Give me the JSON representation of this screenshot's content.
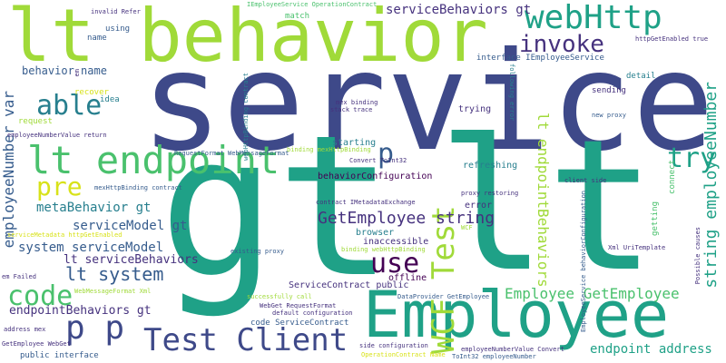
{
  "colors": {
    "background": "#ffffff",
    "lime": "#a0da39",
    "green": "#4ac16d",
    "teal": "#1fa187",
    "cyan": "#277f8e",
    "blue": "#365c8d",
    "indigo": "#46327e",
    "purple": "#440154",
    "yellow": "#d8e219",
    "slate": "#3e4989"
  },
  "words": [
    {
      "text": "service",
      "color": "slate"
    },
    {
      "text": "gt",
      "color": "teal"
    },
    {
      "text": "lt",
      "color": "teal"
    },
    {
      "text": "lt behavior",
      "color": "lime"
    },
    {
      "text": "Employee",
      "color": "teal"
    },
    {
      "text": "lt endpoint",
      "color": "green"
    },
    {
      "text": "webHttp",
      "color": "teal"
    },
    {
      "text": "invoke",
      "color": "indigo"
    },
    {
      "text": "able",
      "color": "cyan"
    },
    {
      "text": "Test Client",
      "color": "slate"
    },
    {
      "text": "WCF Test",
      "color": "lime"
    },
    {
      "text": "try",
      "color": "teal"
    },
    {
      "text": "p p",
      "color": "slate"
    },
    {
      "text": "code",
      "color": "green"
    },
    {
      "text": "use",
      "color": "purple"
    },
    {
      "text": "pre",
      "color": "yellow"
    },
    {
      "text": "p",
      "color": "blue"
    },
    {
      "text": "GetEmployee string",
      "color": "indigo"
    },
    {
      "text": "lt system",
      "color": "blue"
    },
    {
      "text": "Employee GetEmployee",
      "color": "green"
    },
    {
      "text": "string employeeNumber",
      "color": "teal"
    },
    {
      "text": "employeeNumber var",
      "color": "blue"
    },
    {
      "text": "lt endpointBehaviors",
      "color": "lime"
    },
    {
      "text": "serviceBehaviors gt",
      "color": "indigo"
    },
    {
      "text": "endpoint address",
      "color": "teal"
    },
    {
      "text": "metaBehavior gt",
      "color": "cyan"
    },
    {
      "text": "serviceModel gt",
      "color": "blue"
    },
    {
      "text": "system serviceModel",
      "color": "blue"
    },
    {
      "text": "lt serviceBehaviors",
      "color": "indigo"
    },
    {
      "text": "endpointBehaviors gt",
      "color": "indigo"
    },
    {
      "text": "behavior name",
      "color": "blue"
    },
    {
      "text": "behaviorConfiguration",
      "color": "purple"
    },
    {
      "text": "ServiceContract public",
      "color": "indigo"
    },
    {
      "text": "trying",
      "color": "indigo"
    },
    {
      "text": "starting",
      "color": "cyan"
    },
    {
      "text": "refreshing",
      "color": "cyan"
    },
    {
      "text": "error",
      "color": "indigo"
    },
    {
      "text": "browser",
      "color": "cyan"
    },
    {
      "text": "inaccessible",
      "color": "indigo"
    },
    {
      "text": "offline",
      "color": "purple"
    },
    {
      "text": "sending",
      "color": "indigo"
    },
    {
      "text": "detail",
      "color": "cyan"
    },
    {
      "text": "match",
      "color": "green"
    },
    {
      "text": "using",
      "color": "blue"
    },
    {
      "text": "name",
      "color": "blue"
    },
    {
      "text": "idea",
      "color": "cyan"
    },
    {
      "text": "recover",
      "color": "yellow"
    },
    {
      "text": "request",
      "color": "lime"
    },
    {
      "text": "invalid Refer",
      "color": "indigo"
    },
    {
      "text": "IEmployeeService OperationContract",
      "color": "green"
    },
    {
      "text": "interface IEmployeeService",
      "color": "blue"
    },
    {
      "text": "httpGetEnabled true",
      "color": "indigo"
    },
    {
      "text": "new proxy",
      "color": "blue"
    },
    {
      "text": "following error",
      "color": "cyan"
    },
    {
      "text": "mex binding",
      "color": "indigo"
    },
    {
      "text": "stack trace",
      "color": "indigo"
    },
    {
      "text": "binding mexHttpBinding",
      "color": "lime"
    },
    {
      "text": "webHttpBinding contract",
      "color": "cyan"
    },
    {
      "text": "employeeNumberValue return",
      "color": "indigo"
    },
    {
      "text": "RequestFormat WebMessageFormat",
      "color": "blue"
    },
    {
      "text": "Convert ToInt32",
      "color": "indigo"
    },
    {
      "text": "mexHttpBinding contract",
      "color": "blue"
    },
    {
      "text": "serviceMetadata httpGetEnabled",
      "color": "yellow"
    },
    {
      "text": "contract IMetadataExchange",
      "color": "indigo"
    },
    {
      "text": "proxy restoring",
      "color": "indigo"
    },
    {
      "text": "WCF",
      "color": "lime"
    },
    {
      "text": "client side",
      "color": "indigo"
    },
    {
      "text": "connect",
      "color": "green"
    },
    {
      "text": "getting",
      "color": "green"
    },
    {
      "text": "existing proxy",
      "color": "blue"
    },
    {
      "text": "binding webHttpBinding",
      "color": "lime"
    },
    {
      "text": "Xml UriTemplate",
      "color": "indigo"
    },
    {
      "text": "Possible causes",
      "color": "indigo"
    },
    {
      "text": "EmployeeService behaviorConfiguration",
      "color": "blue"
    },
    {
      "text": "em Failed",
      "color": "indigo"
    },
    {
      "text": "WebMessageFormat Xml",
      "color": "lime"
    },
    {
      "text": "successfully call",
      "color": "lime"
    },
    {
      "text": "DataProvider GetEmployee",
      "color": "blue"
    },
    {
      "text": "WebGet RequestFormat",
      "color": "indigo"
    },
    {
      "text": "default configuration",
      "color": "indigo"
    },
    {
      "text": "code ServiceContract",
      "color": "blue"
    },
    {
      "text": "address mex",
      "color": "indigo"
    },
    {
      "text": "GetEmployee WebGet",
      "color": "indigo"
    },
    {
      "text": "public interface",
      "color": "blue"
    },
    {
      "text": "side configuration",
      "color": "indigo"
    },
    {
      "text": "employeeNumberValue Convert",
      "color": "indigo"
    },
    {
      "text": "OperationContract Name",
      "color": "yellow"
    },
    {
      "text": "ToInt32 employeeNumber",
      "color": "blue"
    },
    {
      "text": "em",
      "color": "indigo"
    }
  ]
}
